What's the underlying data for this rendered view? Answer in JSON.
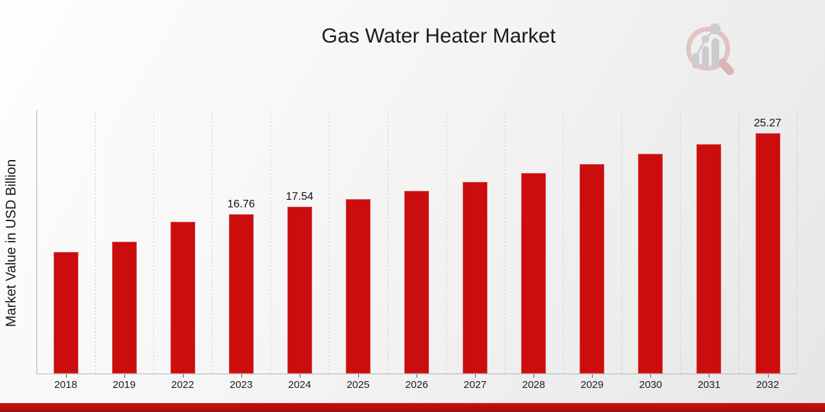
{
  "watermark": {
    "icon": "magnifier-bar-chart-logo"
  },
  "chart_data": {
    "type": "bar",
    "title": "Gas Water Heater Market",
    "xlabel": "",
    "ylabel": "Market Value in USD Billion",
    "categories": [
      "2018",
      "2019",
      "2022",
      "2023",
      "2024",
      "2025",
      "2026",
      "2027",
      "2028",
      "2029",
      "2030",
      "2031",
      "2032"
    ],
    "values": [
      12.76,
      13.89,
      15.97,
      16.76,
      17.54,
      18.37,
      19.22,
      20.18,
      21.08,
      22.05,
      23.13,
      24.15,
      25.27
    ],
    "data_labels": [
      "",
      "",
      "",
      "16.76",
      "17.54",
      "",
      "",
      "",
      "",
      "",
      "",
      "",
      "25.27"
    ],
    "ylim": [
      0,
      27.8
    ],
    "grid": "vertical-dashed",
    "legend": "none",
    "colors": {
      "bar": "#cb0d0d",
      "footer_band": "#b31010",
      "gridline": "#c9c9c9",
      "axis": "#b5b5b5",
      "text": "#1b1b1b"
    }
  }
}
